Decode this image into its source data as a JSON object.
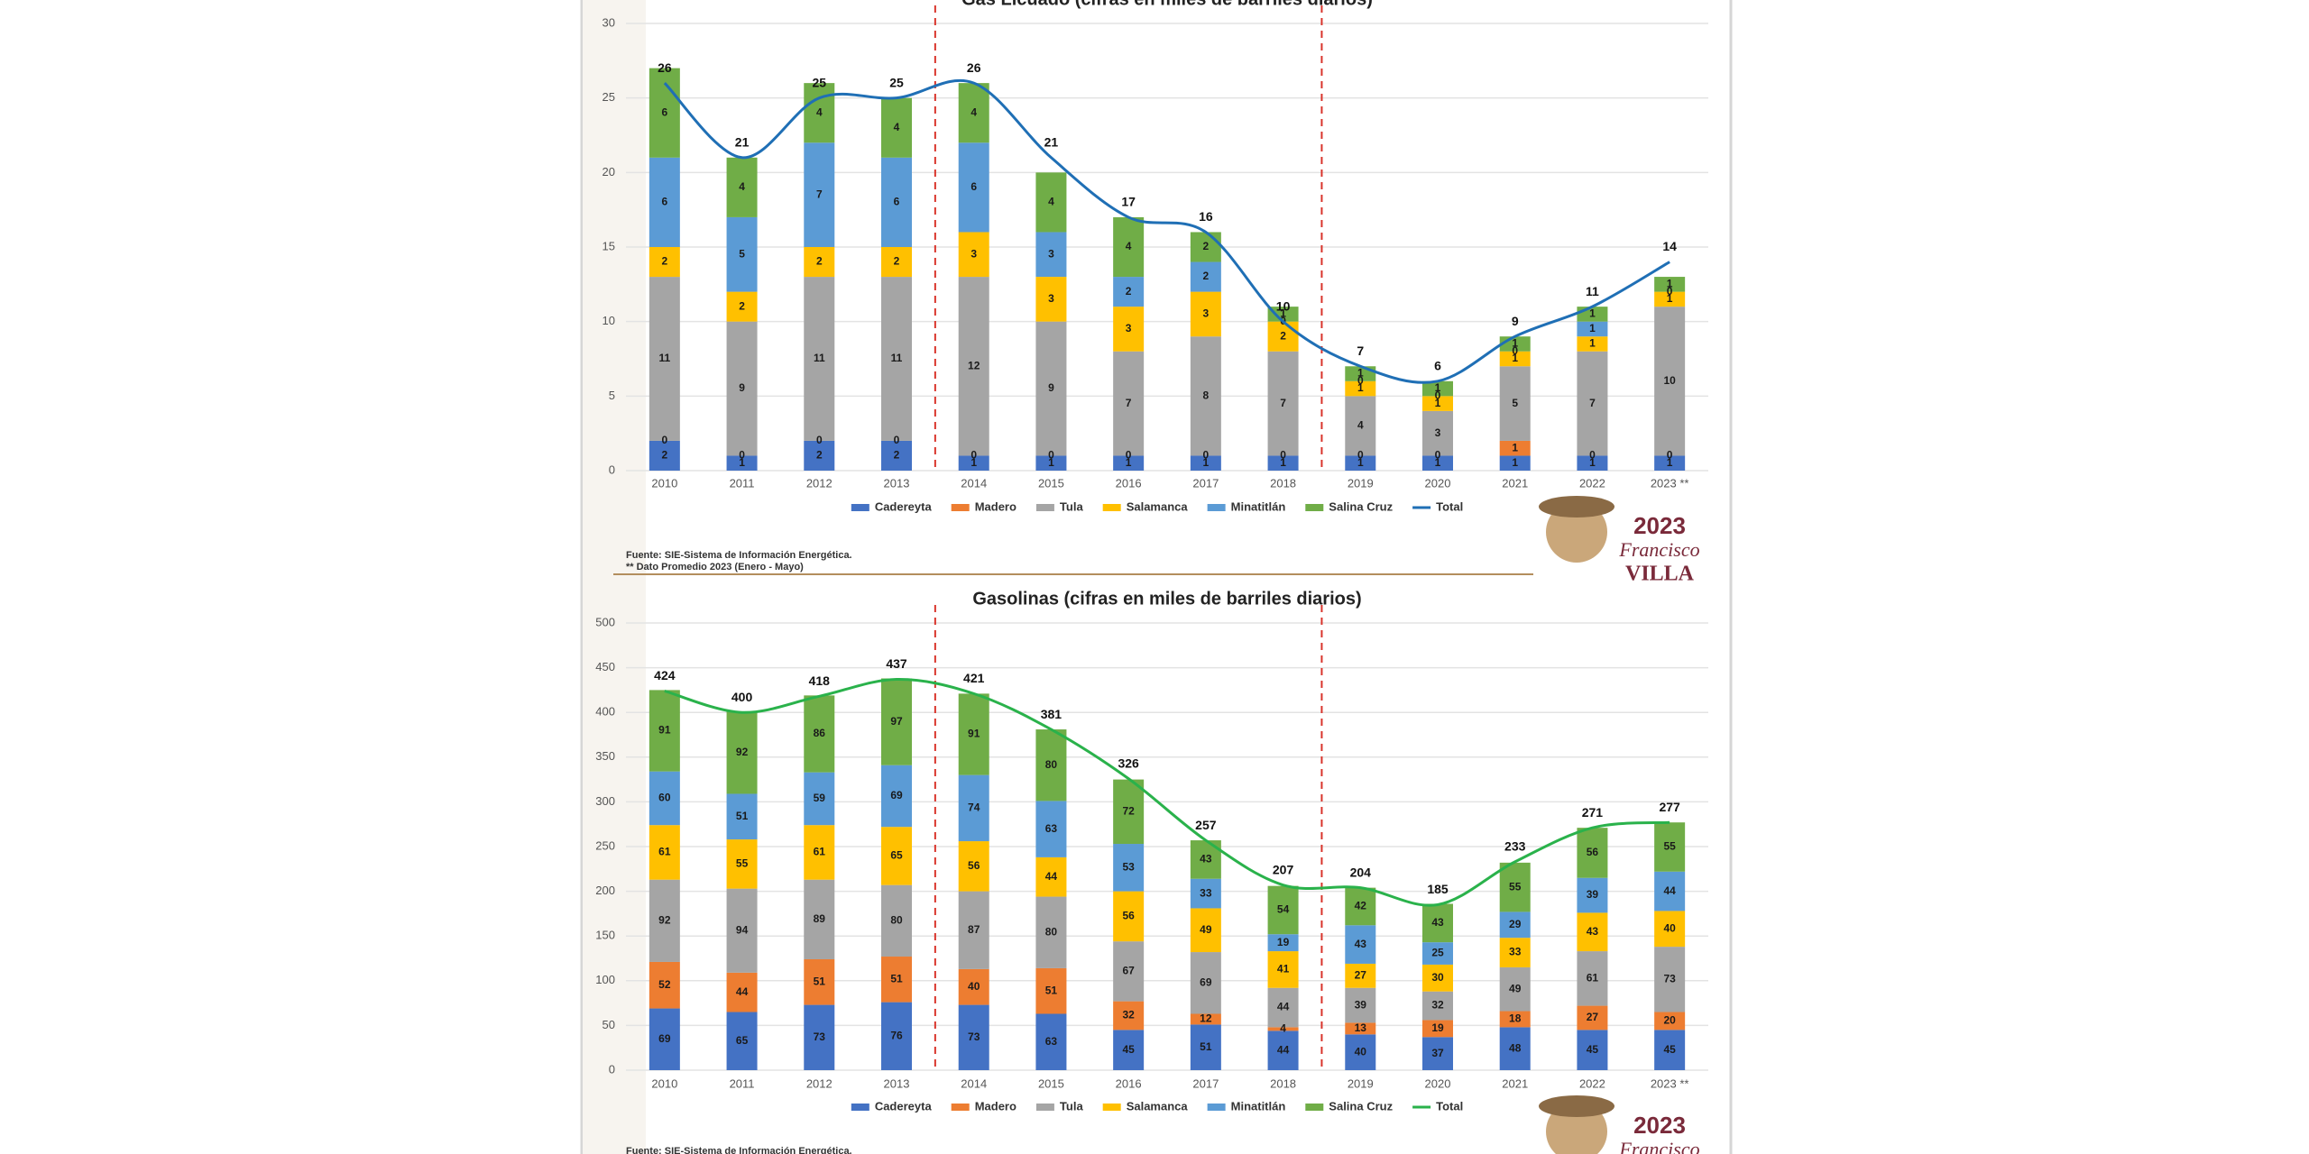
{
  "chart_data": [
    {
      "type": "bar",
      "stacked": true,
      "title": "Gas Licuado (cifras en miles de barriles diarios)",
      "categories": [
        "2010",
        "2011",
        "2012",
        "2013",
        "2014",
        "2015",
        "2016",
        "2017",
        "2018",
        "2019",
        "2020",
        "2021",
        "2022",
        "2023 **"
      ],
      "ylim": [
        0,
        30
      ],
      "yticks": [
        0,
        5,
        10,
        15,
        20,
        25,
        30
      ],
      "grid": true,
      "legend": "bottom",
      "series": [
        {
          "name": "Cadereyta",
          "color": "#4472c4",
          "values": [
            2,
            1,
            2,
            2,
            1,
            1,
            1,
            1,
            1,
            1,
            1,
            1,
            1,
            1
          ]
        },
        {
          "name": "Madero",
          "color": "#ed7d31",
          "values": [
            0,
            0,
            0,
            0,
            0,
            0,
            0,
            0,
            0,
            0,
            0,
            1,
            0,
            0
          ]
        },
        {
          "name": "Tula",
          "color": "#a5a5a5",
          "values": [
            11,
            9,
            11,
            11,
            12,
            9,
            7,
            8,
            7,
            4,
            3,
            5,
            7,
            10
          ]
        },
        {
          "name": "Salamanca",
          "color": "#ffc000",
          "values": [
            2,
            2,
            2,
            2,
            3,
            3,
            3,
            3,
            2,
            1,
            1,
            1,
            1,
            1
          ]
        },
        {
          "name": "Minatitlán",
          "color": "#5b9bd5",
          "values": [
            6,
            5,
            7,
            6,
            6,
            3,
            2,
            2,
            0,
            0,
            0,
            0,
            1,
            0
          ]
        },
        {
          "name": "Salina Cruz",
          "color": "#70ad47",
          "values": [
            6,
            4,
            4,
            4,
            4,
            4,
            4,
            2,
            1,
            1,
            1,
            1,
            1,
            1
          ]
        },
        {
          "name": "Total",
          "type": "line",
          "color": "#1f6fb5",
          "values": [
            26,
            21,
            25,
            25,
            26,
            21,
            17,
            16,
            10,
            7,
            6,
            9,
            11,
            14
          ]
        }
      ],
      "notes": [
        "Fuente: SIE-Sistema de Información Energética.",
        "** Dato Promedio 2023 (Enero - Mayo)"
      ]
    },
    {
      "type": "bar",
      "stacked": true,
      "title": "Gasolinas (cifras en miles de barriles diarios)",
      "categories": [
        "2010",
        "2011",
        "2012",
        "2013",
        "2014",
        "2015",
        "2016",
        "2017",
        "2018",
        "2019",
        "2020",
        "2021",
        "2022",
        "2023 **"
      ],
      "ylim": [
        0,
        500
      ],
      "yticks": [
        0,
        50,
        100,
        150,
        200,
        250,
        300,
        350,
        400,
        450,
        500
      ],
      "grid": true,
      "legend": "bottom",
      "series": [
        {
          "name": "Cadereyta",
          "color": "#4472c4",
          "values": [
            69,
            65,
            73,
            76,
            73,
            63,
            45,
            51,
            44,
            40,
            37,
            48,
            45,
            45
          ]
        },
        {
          "name": "Madero",
          "color": "#ed7d31",
          "values": [
            52,
            44,
            51,
            51,
            40,
            51,
            32,
            12,
            4,
            13,
            19,
            18,
            27,
            20
          ]
        },
        {
          "name": "Tula",
          "color": "#a5a5a5",
          "values": [
            92,
            94,
            89,
            80,
            87,
            80,
            67,
            69,
            44,
            39,
            32,
            49,
            61,
            73
          ]
        },
        {
          "name": "Salamanca",
          "color": "#ffc000",
          "values": [
            61,
            55,
            61,
            65,
            56,
            44,
            56,
            49,
            41,
            27,
            30,
            33,
            43,
            40
          ]
        },
        {
          "name": "Minatitlán",
          "color": "#5b9bd5",
          "values": [
            60,
            51,
            59,
            69,
            74,
            63,
            53,
            33,
            19,
            43,
            25,
            29,
            39,
            44
          ]
        },
        {
          "name": "Salina Cruz",
          "color": "#70ad47",
          "values": [
            91,
            92,
            86,
            97,
            91,
            80,
            72,
            43,
            54,
            42,
            43,
            55,
            56,
            55
          ]
        },
        {
          "name": "Total",
          "type": "line",
          "color": "#2ab24b",
          "values": [
            424,
            400,
            418,
            437,
            421,
            381,
            326,
            257,
            207,
            204,
            185,
            233,
            271,
            277
          ]
        }
      ],
      "notes": [
        "Fuente: SIE-Sistema de Información Energética."
      ]
    }
  ],
  "logo": {
    "year": "2023",
    "name": "Francisco",
    "surname": "VILLA"
  }
}
